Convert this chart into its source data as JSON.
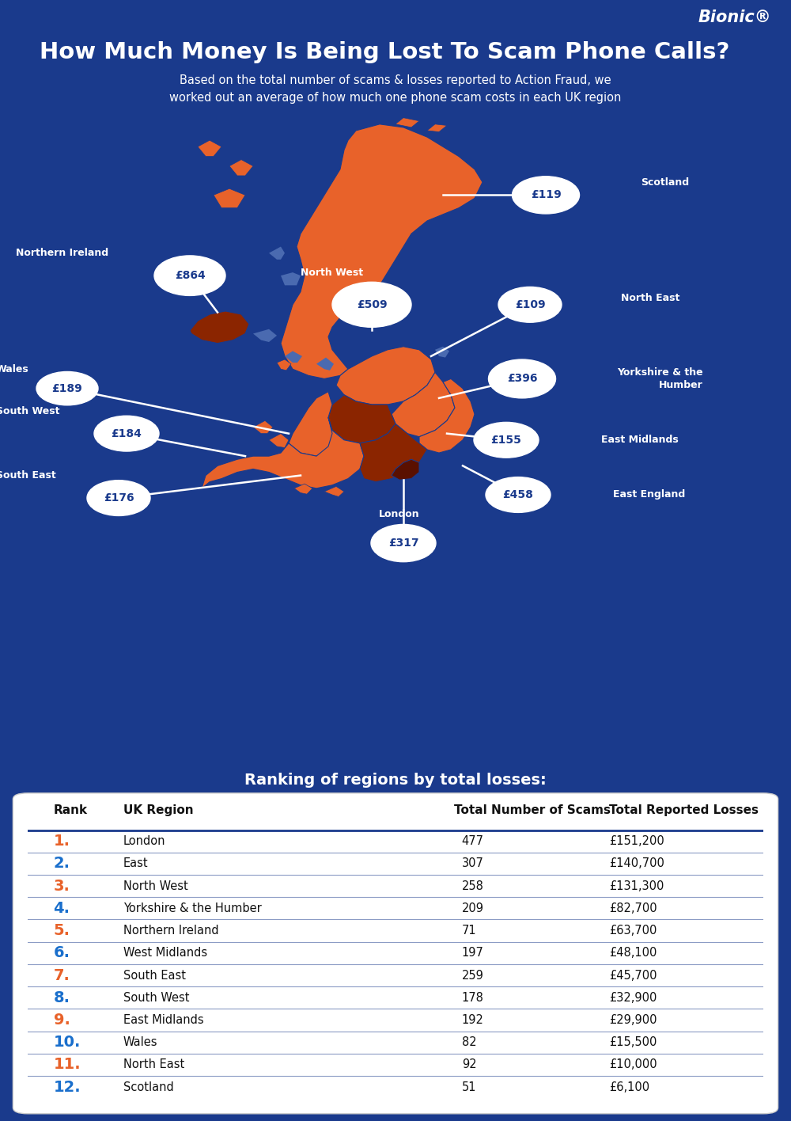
{
  "bg_color": "#1a3a8c",
  "title": "How Much Money Is Being Lost To Scam Phone Calls?",
  "subtitle": "Based on the total number of scams & losses reported to Action Fraud, we\nworked out an average of how much one phone scam costs in each UK region",
  "bionic_text": "Bionic®",
  "table_heading": "Ranking of regions by total losses:",
  "table_headers": [
    "Rank",
    "UK Region",
    "Total Number of Scams",
    "Total Reported Losses"
  ],
  "table_data": [
    {
      "rank": "1.",
      "region": "London",
      "scams": "477",
      "losses": "£151,200",
      "rank_color": "#e8622a"
    },
    {
      "rank": "2.",
      "region": "East",
      "scams": "307",
      "losses": "£140,700",
      "rank_color": "#1a6fcc"
    },
    {
      "rank": "3.",
      "region": "North West",
      "scams": "258",
      "losses": "£131,300",
      "rank_color": "#e8622a"
    },
    {
      "rank": "4.",
      "region": "Yorkshire & the Humber",
      "scams": "209",
      "losses": "£82,700",
      "rank_color": "#1a6fcc"
    },
    {
      "rank": "5.",
      "region": "Northern Ireland",
      "scams": "71",
      "losses": "£63,700",
      "rank_color": "#e8622a"
    },
    {
      "rank": "6.",
      "region": "West Midlands",
      "scams": "197",
      "losses": "£48,100",
      "rank_color": "#1a6fcc"
    },
    {
      "rank": "7.",
      "region": "South East",
      "scams": "259",
      "losses": "£45,700",
      "rank_color": "#e8622a"
    },
    {
      "rank": "8.",
      "region": "South West",
      "scams": "178",
      "losses": "£32,900",
      "rank_color": "#1a6fcc"
    },
    {
      "rank": "9.",
      "region": "East Midlands",
      "scams": "192",
      "losses": "£29,900",
      "rank_color": "#e8622a"
    },
    {
      "rank": "10.",
      "region": "Wales",
      "scams": "82",
      "losses": "£15,500",
      "rank_color": "#1a6fcc"
    },
    {
      "rank": "11.",
      "region": "North East",
      "scams": "92",
      "losses": "£10,000",
      "rank_color": "#e8622a"
    },
    {
      "rank": "12.",
      "region": "Scotland",
      "scams": "51",
      "losses": "£6,100",
      "rank_color": "#1a6fcc"
    }
  ],
  "orange_main": "#e8622a",
  "orange_dark": "#8b2500",
  "sea_color": "#4a6ab0",
  "line_color": "#1a3a8c",
  "table_line_color": "#1a3a8c",
  "table_sep_color": "#1a3a8c"
}
